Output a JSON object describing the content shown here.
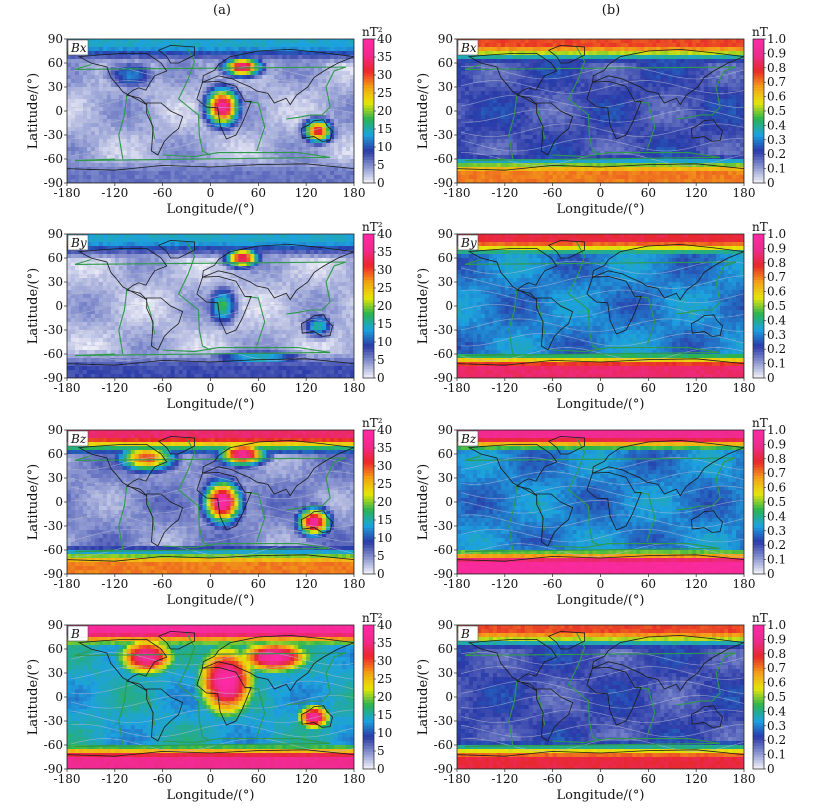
{
  "columns": [
    {
      "label": "(a)",
      "unit": "nT²",
      "cbar_ticks": [
        "0",
        "5",
        "10",
        "15",
        "20",
        "25",
        "30",
        "35",
        "40"
      ]
    },
    {
      "label": "(b)",
      "unit": "nT",
      "cbar_ticks": [
        "0",
        "0.1",
        "0.2",
        "0.3",
        "0.4",
        "0.5",
        "0.6",
        "0.7",
        "0.8",
        "0.9",
        "1.0"
      ]
    }
  ],
  "axes": {
    "xlabel": "Longitude/(°)",
    "ylabel": "Latitude/(°)",
    "xticks": [
      "-180",
      "-120",
      "-60",
      "0",
      "60",
      "120",
      "180"
    ],
    "yticks": [
      "90",
      "60",
      "30",
      "0",
      "-30",
      "-60",
      "-90"
    ]
  },
  "colors": {
    "scale": [
      "#f4f4fa",
      "#8a95d0",
      "#2a3aa8",
      "#1da2e0",
      "#2bb350",
      "#e6e60a",
      "#f3a018",
      "#e8282a",
      "#ee2a8e",
      "#ff2aa5"
    ],
    "contour": "#b9bdd2",
    "plate_boundary": "#2f9a4a",
    "coastline": "#1b1b1b"
  },
  "chart_data": [
    {
      "type": "heatmap",
      "panel": "a",
      "component": "Bx",
      "xlim": [
        -180,
        180
      ],
      "ylim": [
        -90,
        90
      ],
      "zlim": [
        0,
        40
      ],
      "colorbar_unit": "nT²",
      "background": 0.08,
      "polar_north": 0.35,
      "polar_south": 0.15,
      "features": [
        {
          "lon": 15,
          "lat": 5,
          "peak": 38,
          "rx": 14,
          "ry": 16
        },
        {
          "lon": 40,
          "lat": 55,
          "peak": 36,
          "rx": 16,
          "ry": 8
        },
        {
          "lon": 135,
          "lat": -25,
          "peak": 33,
          "rx": 12,
          "ry": 10
        },
        {
          "lon": -100,
          "lat": 45,
          "peak": 12,
          "rx": 22,
          "ry": 12
        }
      ]
    },
    {
      "type": "heatmap",
      "panel": "b",
      "component": "Bx",
      "xlim": [
        -180,
        180
      ],
      "ylim": [
        -90,
        90
      ],
      "zlim": [
        0,
        1.0
      ],
      "colorbar_unit": "nT",
      "background": 0.2,
      "polar_north": 0.75,
      "polar_south": 0.7,
      "features": []
    },
    {
      "type": "heatmap",
      "panel": "a",
      "component": "By",
      "xlim": [
        -180,
        180
      ],
      "ylim": [
        -90,
        90
      ],
      "zlim": [
        0,
        40
      ],
      "colorbar_unit": "nT²",
      "background": 0.07,
      "polar_north": 0.35,
      "polar_south": 0.2,
      "features": [
        {
          "lon": 40,
          "lat": 60,
          "peak": 35,
          "rx": 14,
          "ry": 8
        },
        {
          "lon": 15,
          "lat": 0,
          "peak": 18,
          "rx": 12,
          "ry": 16
        },
        {
          "lon": 135,
          "lat": -25,
          "peak": 16,
          "rx": 12,
          "ry": 10
        },
        {
          "lon": 60,
          "lat": -65,
          "peak": 16,
          "rx": 40,
          "ry": 6
        }
      ]
    },
    {
      "type": "heatmap",
      "panel": "b",
      "component": "By",
      "xlim": [
        -180,
        180
      ],
      "ylim": [
        -90,
        90
      ],
      "zlim": [
        0,
        1.0
      ],
      "colorbar_unit": "nT",
      "background": 0.3,
      "polar_north": 0.8,
      "polar_south": 0.85,
      "features": []
    },
    {
      "type": "heatmap",
      "panel": "a",
      "component": "Bz",
      "xlim": [
        -180,
        180
      ],
      "ylim": [
        -90,
        90
      ],
      "zlim": [
        0,
        40
      ],
      "colorbar_unit": "nT²",
      "background": 0.12,
      "polar_north": 0.85,
      "polar_south": 0.7,
      "features": [
        {
          "lon": 15,
          "lat": 0,
          "peak": 40,
          "rx": 16,
          "ry": 18
        },
        {
          "lon": 40,
          "lat": 60,
          "peak": 38,
          "rx": 20,
          "ry": 10
        },
        {
          "lon": 130,
          "lat": -25,
          "peak": 38,
          "rx": 14,
          "ry": 12
        },
        {
          "lon": -80,
          "lat": 55,
          "peak": 30,
          "rx": 25,
          "ry": 12
        }
      ]
    },
    {
      "type": "heatmap",
      "panel": "b",
      "component": "Bz",
      "xlim": [
        -180,
        180
      ],
      "ylim": [
        -90,
        90
      ],
      "zlim": [
        0,
        1.0
      ],
      "colorbar_unit": "nT",
      "background": 0.3,
      "polar_north": 0.9,
      "polar_south": 0.95,
      "features": []
    },
    {
      "type": "heatmap",
      "panel": "a",
      "component": "B",
      "xlim": [
        -180,
        180
      ],
      "ylim": [
        -90,
        90
      ],
      "zlim": [
        0,
        40
      ],
      "colorbar_unit": "nT²",
      "background": 0.35,
      "polar_north": 0.95,
      "polar_south": 0.9,
      "features": [
        {
          "lon": 20,
          "lat": 20,
          "peak": 40,
          "rx": 28,
          "ry": 35
        },
        {
          "lon": 130,
          "lat": -25,
          "peak": 38,
          "rx": 16,
          "ry": 12
        },
        {
          "lon": -80,
          "lat": 50,
          "peak": 38,
          "rx": 28,
          "ry": 18
        },
        {
          "lon": 80,
          "lat": 50,
          "peak": 40,
          "rx": 35,
          "ry": 15
        }
      ]
    },
    {
      "type": "heatmap",
      "panel": "b",
      "component": "B",
      "xlim": [
        -180,
        180
      ],
      "ylim": [
        -90,
        90
      ],
      "zlim": [
        0,
        1.0
      ],
      "colorbar_unit": "nT",
      "background": 0.2,
      "polar_north": 0.75,
      "polar_south": 0.8,
      "features": []
    }
  ]
}
